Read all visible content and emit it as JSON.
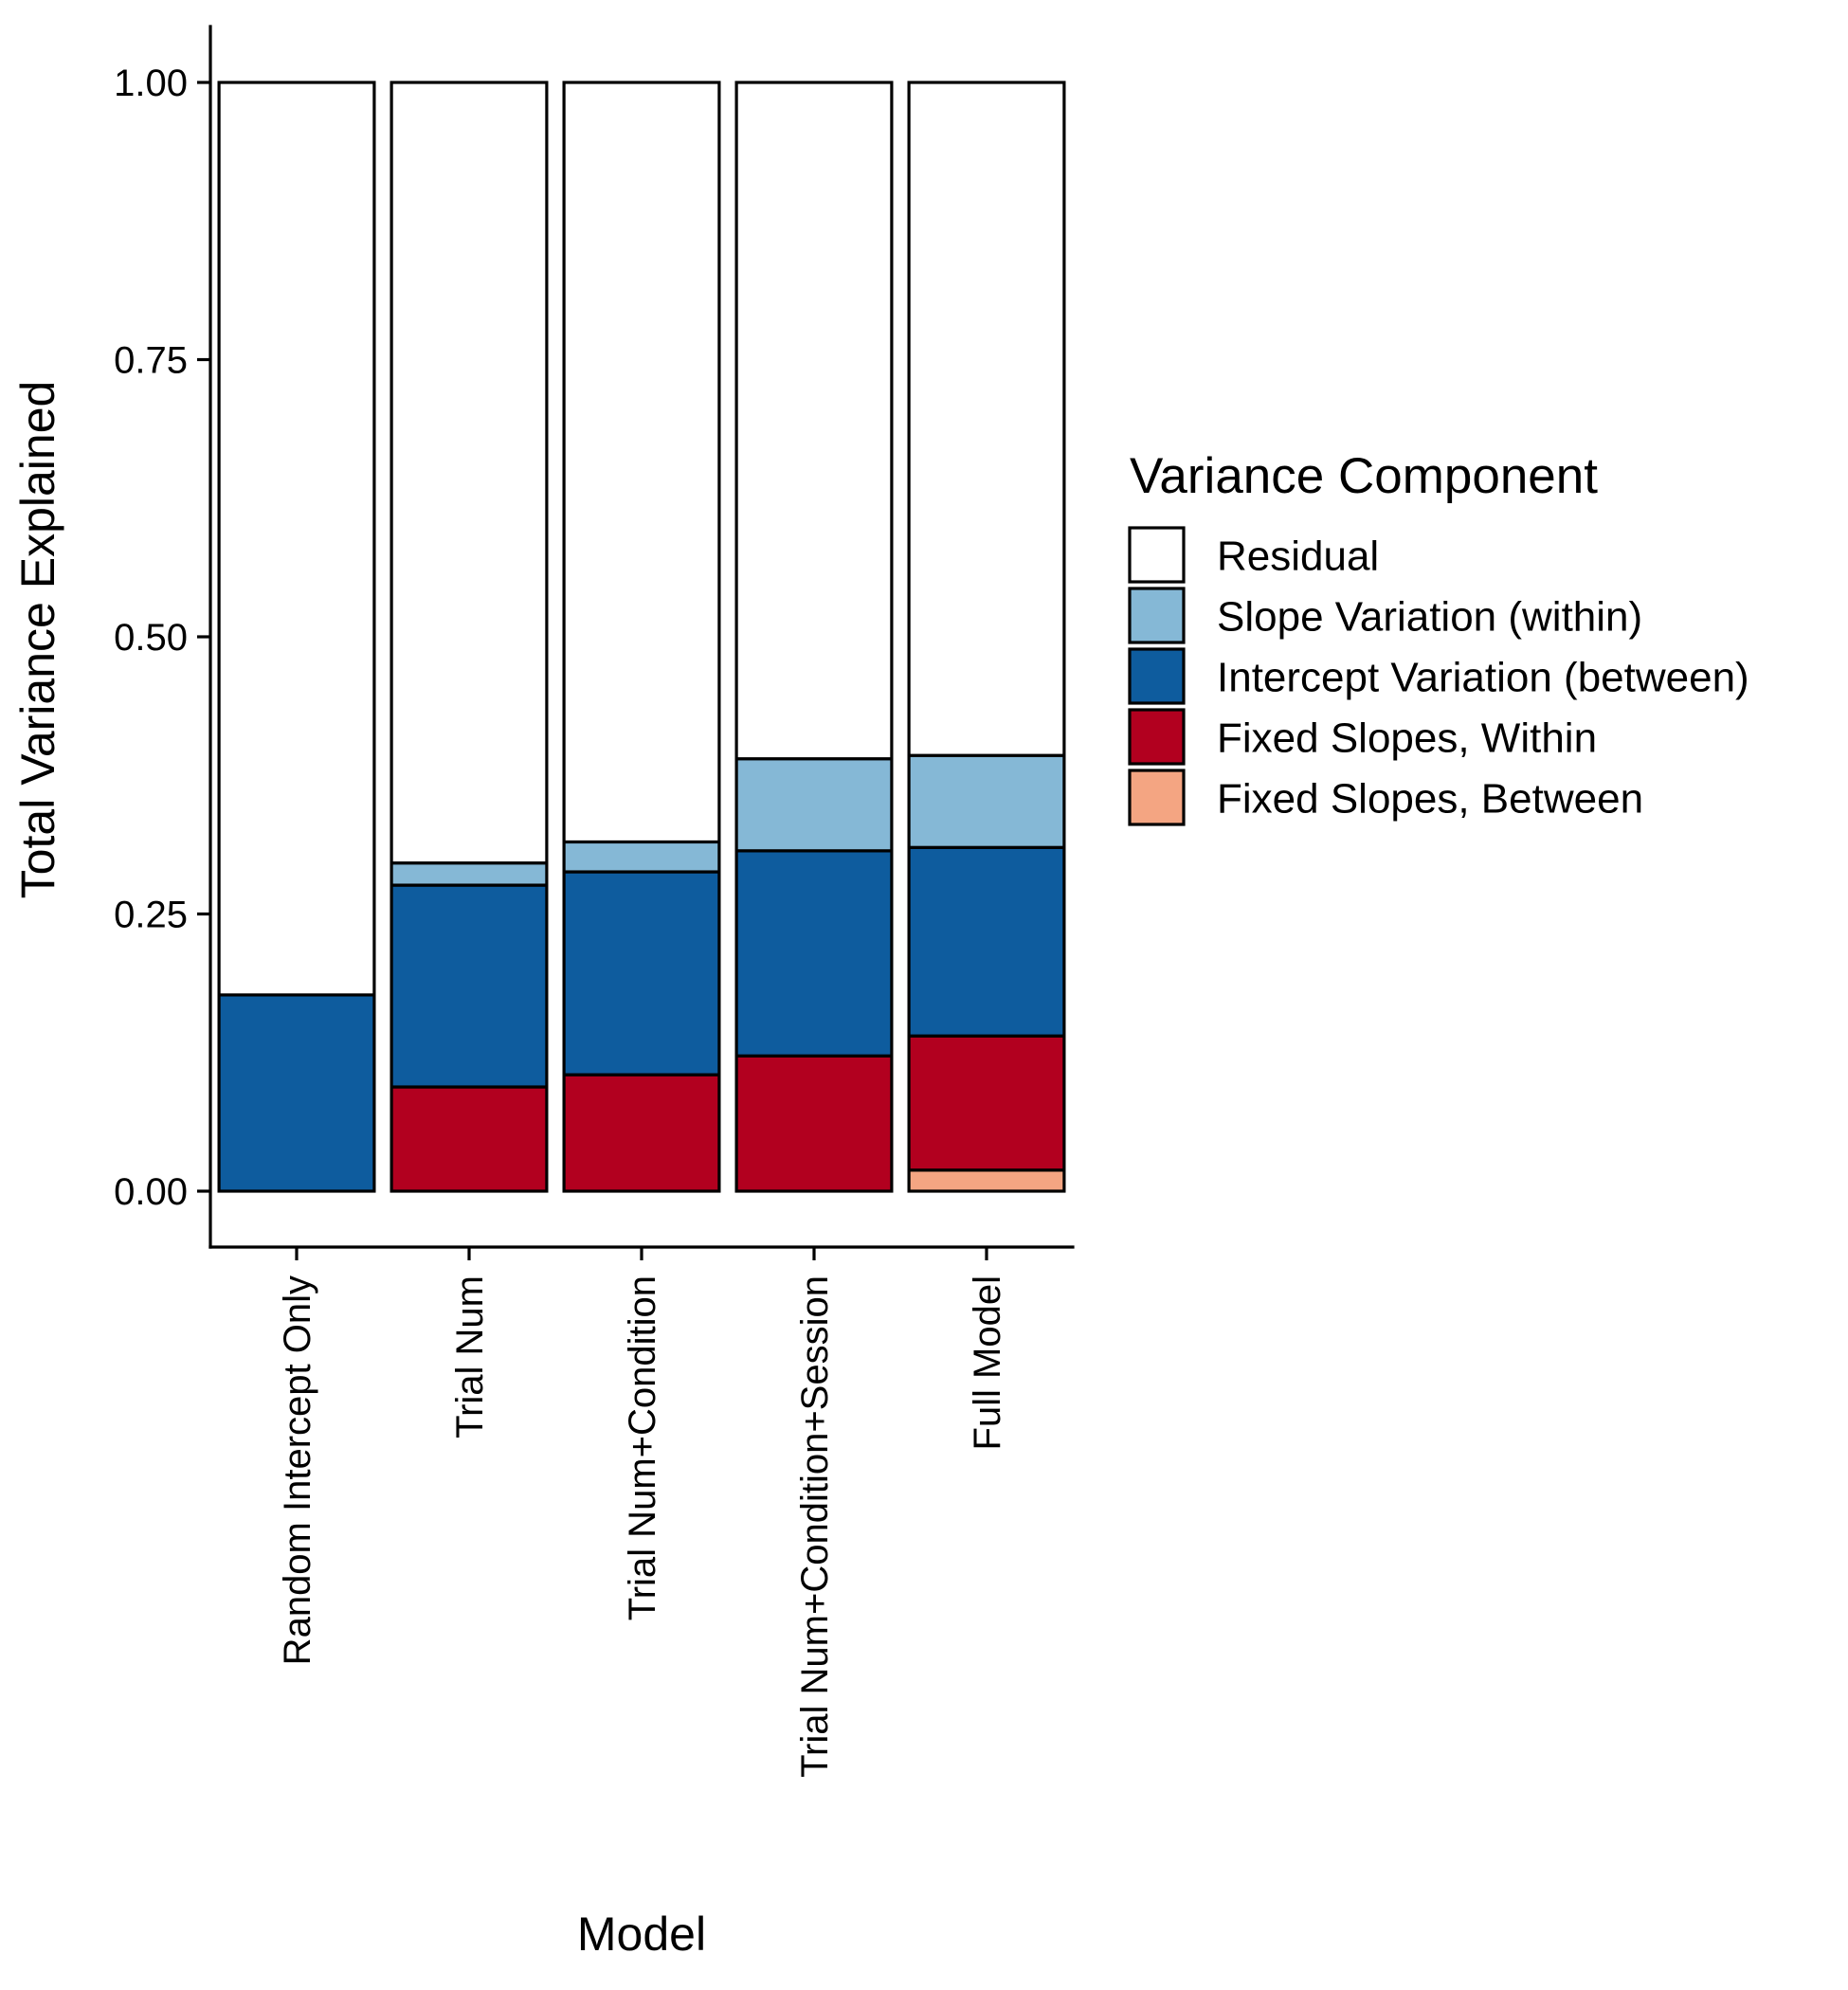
{
  "chart_data": {
    "type": "bar",
    "stacked": true,
    "title": "",
    "xlabel": "Model",
    "ylabel": "Total Variance Explained",
    "ylim": [
      0,
      1
    ],
    "yticks": [
      "0.00",
      "0.25",
      "0.50",
      "0.75",
      "1.00"
    ],
    "grid": false,
    "legend_position": "right",
    "categories": [
      "Random Intercept Only",
      "Trial Num",
      "Trial Num+Condition",
      "Trial Num+Condition+Session",
      "Full Model"
    ],
    "legend_title": "Variance Component",
    "series": [
      {
        "name": "Fixed Slopes, Between",
        "color": "#F4A582",
        "values": [
          0,
          0,
          0,
          0,
          0.019
        ]
      },
      {
        "name": "Fixed Slopes, Within",
        "color": "#B2001F",
        "values": [
          0,
          0.094,
          0.105,
          0.122,
          0.121
        ]
      },
      {
        "name": "Intercept Variation (between)",
        "color": "#0E5C9E",
        "values": [
          0.177,
          0.182,
          0.183,
          0.185,
          0.17
        ]
      },
      {
        "name": "Slope Variation (within)",
        "color": "#85B8D6",
        "values": [
          0,
          0.02,
          0.027,
          0.083,
          0.083
        ]
      },
      {
        "name": "Residual",
        "color": "#FFFFFF",
        "values": [
          0.823,
          0.704,
          0.685,
          0.61,
          0.607
        ]
      }
    ],
    "legend_order": [
      "Residual",
      "Slope Variation (within)",
      "Intercept Variation (between)",
      "Fixed Slopes, Within",
      "Fixed Slopes, Between"
    ]
  }
}
